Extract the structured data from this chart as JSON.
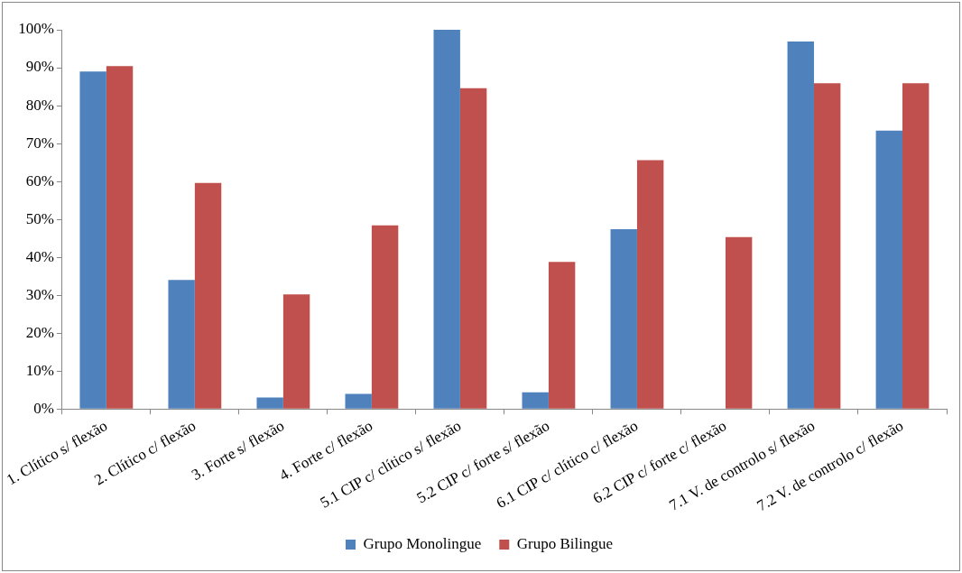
{
  "chart_data": {
    "type": "bar",
    "categories": [
      "1. Clítico s/ flexão",
      "2. Clítico c/ flexão",
      "3. Forte s/ flexão",
      "4. Forte c/ flexão",
      "5.1 CIP c/ clítico s/ flexão",
      "5.2 CIP c/ forte s/ flexão",
      "6.1 CIP c/ clítico c/ flexão",
      "6.2 CIP c/ forte c/ flexão",
      "7.1 V. de controlo s/ flexão",
      "7.2 V. de controlo c/ flexão"
    ],
    "series": [
      {
        "name": "Grupo Monolingue",
        "color": "#4f81bd",
        "values": [
          89,
          34,
          3,
          4,
          100,
          4.4,
          47.4,
          0,
          96.9,
          73.4
        ]
      },
      {
        "name": "Grupo Bilingue",
        "color": "#c0504d",
        "values": [
          90.4,
          59.6,
          30.2,
          48.4,
          84.6,
          38.8,
          65.6,
          45.3,
          85.9,
          85.9
        ]
      }
    ],
    "ylim": [
      0,
      100
    ],
    "yticks": [
      {
        "value": 0,
        "label": "0%"
      },
      {
        "value": 10,
        "label": "10%"
      },
      {
        "value": 20,
        "label": "20%"
      },
      {
        "value": 30,
        "label": "30%"
      },
      {
        "value": 40,
        "label": "40%"
      },
      {
        "value": 50,
        "label": "50%"
      },
      {
        "value": 60,
        "label": "60%"
      },
      {
        "value": 70,
        "label": "70%"
      },
      {
        "value": 80,
        "label": "80%"
      },
      {
        "value": 90,
        "label": "90%"
      },
      {
        "value": 100,
        "label": "100%"
      }
    ],
    "grid": false,
    "legend": "bottom"
  }
}
